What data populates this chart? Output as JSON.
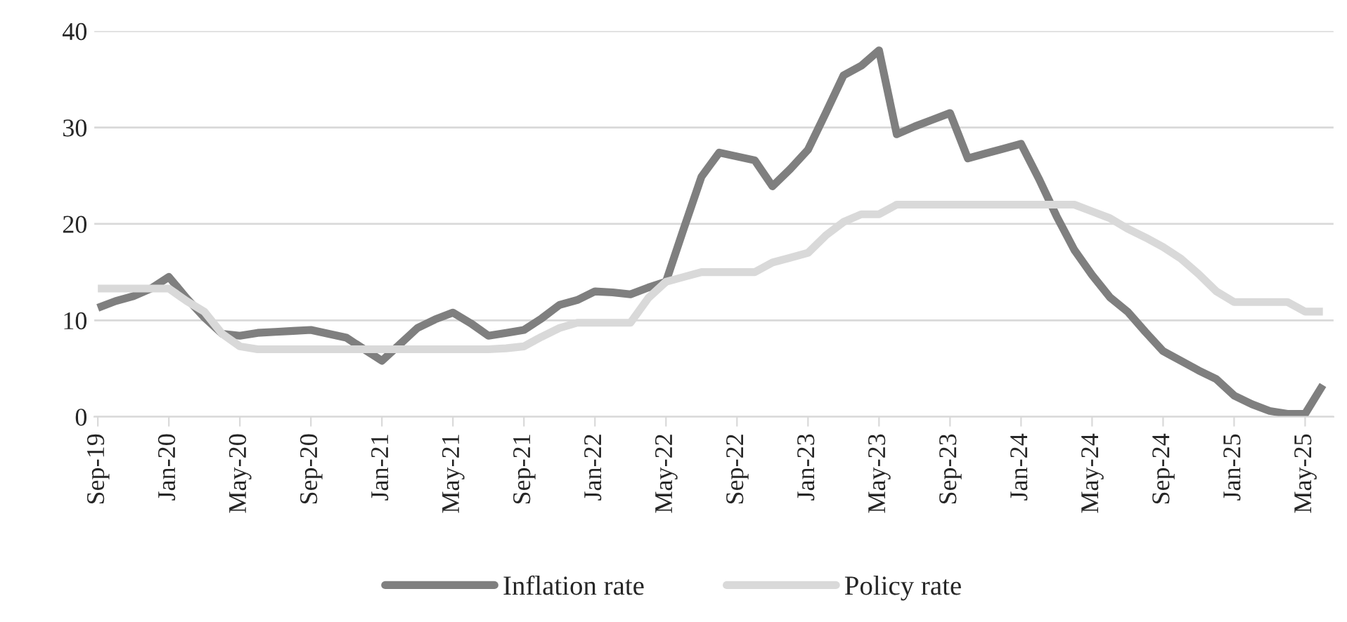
{
  "chart_data": {
    "type": "line",
    "categories": [
      "Sep-19",
      null,
      null,
      null,
      "Jan-20",
      null,
      null,
      null,
      "May-20",
      null,
      null,
      null,
      "Sep-20",
      null,
      null,
      null,
      "Jan-21",
      null,
      null,
      null,
      "May-21",
      null,
      null,
      null,
      "Sep-21",
      null,
      null,
      null,
      "Jan-22",
      null,
      null,
      null,
      "May-22",
      null,
      null,
      null,
      "Sep-22",
      null,
      null,
      null,
      "Jan-23",
      null,
      null,
      null,
      "May-23",
      null,
      null,
      null,
      "Sep-23",
      null,
      null,
      null,
      "Jan-24",
      null,
      null,
      null,
      "May-24",
      null,
      null,
      null,
      "Sep-24",
      null,
      null,
      null,
      "Jan-25",
      null,
      null,
      null,
      "May-25",
      null
    ],
    "series": [
      {
        "name": "Inflation rate",
        "color": "#7f7f7f",
        "values": [
          11.3,
          12.0,
          12.5,
          13.3,
          14.5,
          12.3,
          10.3,
          8.6,
          8.4,
          8.7,
          8.8,
          8.9,
          9.0,
          8.6,
          8.2,
          7.0,
          5.8,
          7.5,
          9.2,
          10.1,
          10.8,
          9.7,
          8.4,
          8.7,
          9.0,
          10.2,
          11.6,
          12.1,
          13.0,
          12.9,
          12.7,
          13.4,
          14.0,
          19.5,
          24.9,
          27.4,
          27.0,
          26.6,
          23.9,
          25.7,
          27.7,
          31.5,
          35.4,
          36.4,
          38.0,
          29.3,
          30.1,
          30.8,
          31.5,
          26.8,
          27.3,
          27.8,
          28.3,
          24.7,
          20.8,
          17.3,
          14.7,
          12.4,
          10.9,
          8.8,
          6.8,
          5.8,
          4.8,
          3.9,
          2.2,
          1.3,
          0.6,
          0.3,
          0.3,
          3.3
        ]
      },
      {
        "name": "Policy rate",
        "color": "#d9d9d9",
        "values": [
          13.3,
          13.3,
          13.3,
          13.3,
          13.3,
          12.0,
          10.9,
          8.6,
          7.3,
          7.0,
          7.0,
          7.0,
          7.0,
          7.0,
          7.0,
          7.0,
          7.0,
          7.0,
          7.0,
          7.0,
          7.0,
          7.0,
          7.0,
          7.1,
          7.3,
          8.3,
          9.2,
          9.75,
          9.75,
          9.75,
          9.75,
          12.3,
          14.0,
          14.5,
          15.0,
          15.0,
          15.0,
          15.0,
          16.0,
          16.5,
          17.0,
          18.8,
          20.2,
          21.0,
          21.0,
          22.0,
          22.0,
          22.0,
          22.0,
          22.0,
          22.0,
          22.0,
          22.0,
          22.0,
          22.0,
          22.0,
          21.3,
          20.6,
          19.5,
          18.6,
          17.6,
          16.4,
          14.8,
          13.0,
          11.9,
          11.9,
          11.9,
          11.9,
          10.9,
          10.9
        ]
      }
    ],
    "ylim": [
      0,
      40
    ],
    "yticks": [
      0,
      10,
      20,
      30,
      40
    ],
    "grid": "y",
    "legend": "bottom",
    "marker": "none",
    "line_style": "solid"
  }
}
